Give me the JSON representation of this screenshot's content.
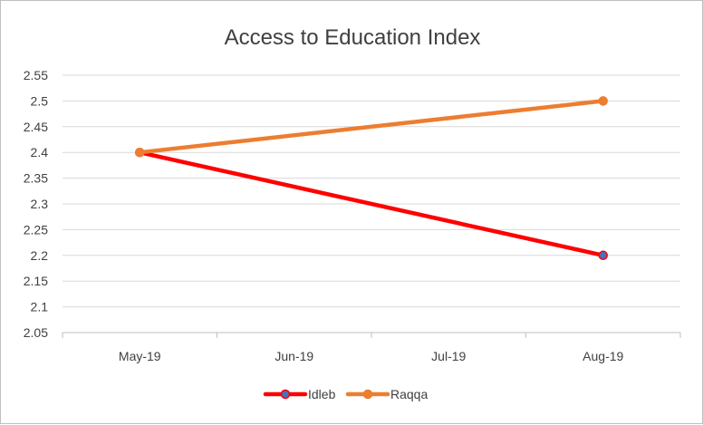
{
  "chart_data": {
    "type": "line",
    "title": "Access to Education Index",
    "xlabel": "",
    "ylabel": "",
    "categories": [
      "May-19",
      "Jun-19",
      "Jul-19",
      "Aug-19"
    ],
    "y_ticks": [
      "2.55",
      "2.5",
      "2.45",
      "2.4",
      "2.35",
      "2.3",
      "2.25",
      "2.2",
      "2.15",
      "2.1",
      "2.05"
    ],
    "ylim": [
      2.05,
      2.55
    ],
    "grid": true,
    "legend_position": "bottom",
    "series": [
      {
        "name": "Idleb",
        "color": "#ff0000",
        "marker_fill": "#4472c4",
        "points": [
          {
            "x": "May-19",
            "y": 2.4
          },
          {
            "x": "Aug-19",
            "y": 2.2
          }
        ]
      },
      {
        "name": "Raqqa",
        "color": "#ed7d31",
        "marker_fill": "#ed7d31",
        "points": [
          {
            "x": "May-19",
            "y": 2.4
          },
          {
            "x": "Aug-19",
            "y": 2.5
          }
        ]
      }
    ]
  }
}
